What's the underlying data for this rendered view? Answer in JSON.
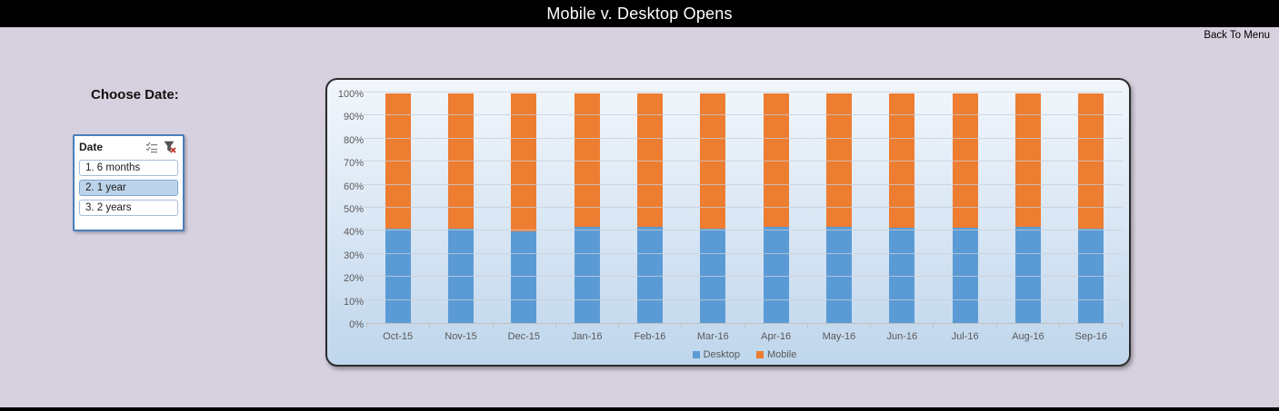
{
  "titlebar": {
    "title": "Mobile v. Desktop Opens"
  },
  "nav": {
    "back_link": "Back To Menu"
  },
  "sidebar": {
    "heading": "Choose Date:",
    "slicer": {
      "title": "Date",
      "icons": [
        "multi-select-icon",
        "clear-filter-icon"
      ],
      "items": [
        {
          "label": "1. 6 months",
          "selected": false
        },
        {
          "label": "2. 1 year",
          "selected": true
        },
        {
          "label": "3. 2 years",
          "selected": false
        }
      ]
    }
  },
  "chart_data": {
    "type": "bar",
    "stacked": true,
    "percent_stacked": true,
    "title": "",
    "xlabel": "",
    "ylabel": "",
    "categories": [
      "Oct-15",
      "Nov-15",
      "Dec-15",
      "Jan-16",
      "Feb-16",
      "Mar-16",
      "Apr-16",
      "May-16",
      "Jun-16",
      "Jul-16",
      "Aug-16",
      "Sep-16"
    ],
    "series": [
      {
        "name": "Desktop",
        "color": "#5B9BD5",
        "values": [
          41,
          41,
          40,
          42,
          42,
          41,
          42,
          42,
          41.5,
          41.5,
          42,
          41
        ]
      },
      {
        "name": "Mobile",
        "color": "#ED7D31",
        "values": [
          59,
          59,
          60,
          58,
          58,
          59,
          58,
          58,
          58.5,
          58.5,
          58,
          59
        ]
      }
    ],
    "ylim": [
      0,
      100
    ],
    "yticks": [
      "0%",
      "10%",
      "20%",
      "30%",
      "40%",
      "50%",
      "60%",
      "70%",
      "80%",
      "90%",
      "100%"
    ],
    "grid": true,
    "legend_position": "bottom"
  },
  "colors": {
    "background": "#D7D1DF",
    "titlebar_bg": "#000000",
    "titlebar_text": "#FFFFFF",
    "desktop_blue": "#5B9BD5",
    "mobile_orange": "#ED7D31",
    "chart_bg_top": "#F2F6FC",
    "chart_bg_bottom": "#BFD6EC",
    "slicer_border": "#4A7EBB",
    "slicer_selected_bg": "#BCD4EA",
    "axis_text": "#595959"
  }
}
